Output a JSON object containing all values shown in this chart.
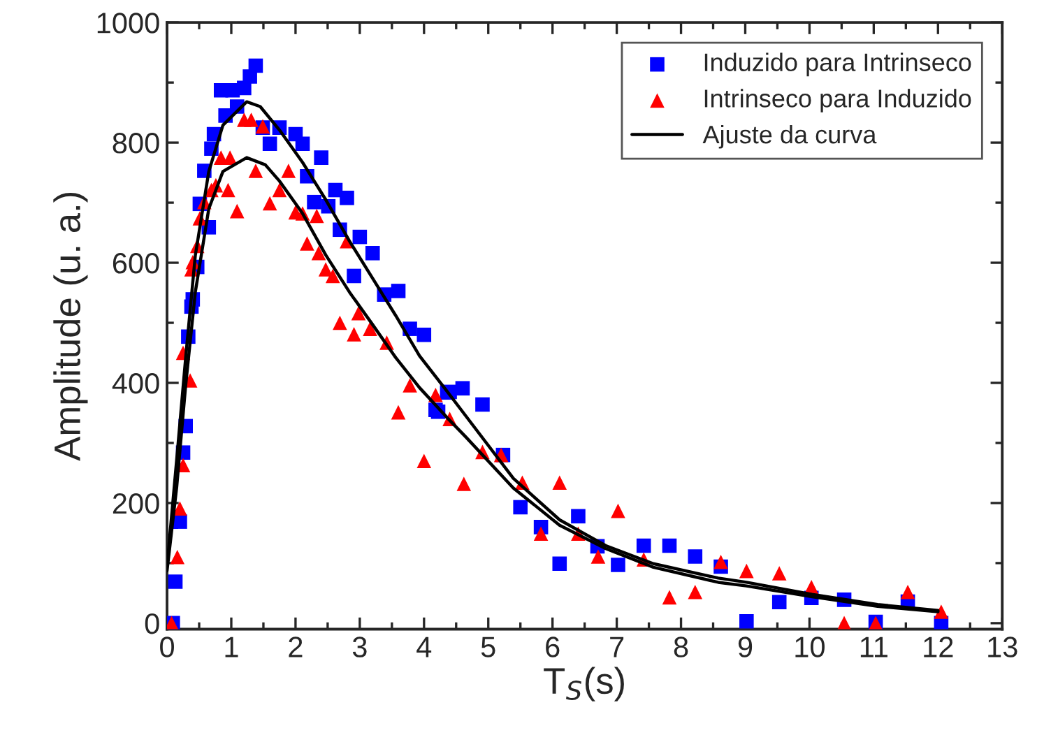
{
  "chart_data": {
    "type": "scatter",
    "xlabel": "T$_{S}$(s)",
    "ylabel": "Amplitude (u. a.)",
    "xlim": [
      0,
      13
    ],
    "ylim": [
      -10,
      1000
    ],
    "xticks": [
      0,
      1,
      2,
      3,
      4,
      5,
      6,
      7,
      8,
      9,
      10,
      11,
      12,
      13
    ],
    "yticks": [
      0,
      200,
      400,
      600,
      800,
      1000
    ],
    "grid": false,
    "legend": "top right",
    "series": [
      {
        "name": "Induzido para Intrinseco",
        "marker": "square",
        "color": "#0000ff",
        "x": [
          0.09,
          0.13,
          0.2,
          0.25,
          0.29,
          0.33,
          0.38,
          0.4,
          0.47,
          0.51,
          0.58,
          0.65,
          0.69,
          0.73,
          0.84,
          0.91,
          1.02,
          1.09,
          1.2,
          1.29,
          1.38,
          1.49,
          1.6,
          1.75,
          2.0,
          2.11,
          2.18,
          2.29,
          2.4,
          2.51,
          2.62,
          2.69,
          2.8,
          2.91,
          3.0,
          3.2,
          3.38,
          3.6,
          3.78,
          4.0,
          4.18,
          4.22,
          4.36,
          4.4,
          4.6,
          4.91,
          5.23,
          5.5,
          5.82,
          6.11,
          6.4,
          6.7,
          7.02,
          7.42,
          7.82,
          8.22,
          8.62,
          9.02,
          9.53,
          10.03,
          10.54,
          11.03,
          11.53,
          12.05
        ],
        "values": [
          0,
          69,
          169,
          284,
          328,
          477,
          527,
          539,
          593,
          698,
          753,
          659,
          790,
          814,
          887,
          845,
          887,
          860,
          891,
          910,
          928,
          825,
          798,
          825,
          814,
          798,
          744,
          701,
          775,
          694,
          721,
          655,
          708,
          578,
          643,
          616,
          547,
          553,
          490,
          480,
          355,
          352,
          384,
          385,
          391,
          364,
          280,
          193,
          160,
          99,
          178,
          128,
          97,
          129,
          129,
          111,
          94,
          3,
          35,
          42,
          39,
          2,
          36,
          0
        ]
      },
      {
        "name": "Intrinseco para Induzido",
        "marker": "triangle",
        "color": "#ff0000",
        "x": [
          0.07,
          0.16,
          0.2,
          0.25,
          0.25,
          0.36,
          0.38,
          0.4,
          0.47,
          0.51,
          0.58,
          0.69,
          0.76,
          0.84,
          0.95,
          0.98,
          1.09,
          1.2,
          1.31,
          1.38,
          1.49,
          1.6,
          1.75,
          1.89,
          2.0,
          2.11,
          2.18,
          2.33,
          2.36,
          2.47,
          2.58,
          2.69,
          2.8,
          2.91,
          2.98,
          3.16,
          3.42,
          3.6,
          3.78,
          4.0,
          4.18,
          4.4,
          4.62,
          4.91,
          5.2,
          5.53,
          5.82,
          6.11,
          6.4,
          6.71,
          7.02,
          7.42,
          7.82,
          8.22,
          8.62,
          9.02,
          9.53,
          10.03,
          10.54,
          11.03,
          11.53,
          12.05
        ],
        "values": [
          0,
          110,
          191,
          263,
          450,
          404,
          589,
          601,
          628,
          674,
          701,
          721,
          729,
          775,
          721,
          775,
          686,
          838,
          838,
          753,
          827,
          699,
          721,
          753,
          684,
          682,
          632,
          678,
          616,
          589,
          578,
          500,
          636,
          481,
          516,
          490,
          467,
          351,
          396,
          270,
          380,
          340,
          232,
          285,
          280,
          234,
          149,
          234,
          149,
          111,
          187,
          106,
          43,
          52,
          102,
          87,
          83,
          60,
          0,
          0,
          52,
          19
        ]
      },
      {
        "name": "Ajuste da curva",
        "type": "line",
        "marker": "none",
        "line_style": "solid",
        "color": "#000000",
        "x": [
          0,
          0.15,
          0.29,
          0.44,
          0.65,
          0.87,
          1.24,
          1.45,
          1.75,
          2.11,
          2.47,
          2.84,
          3.2,
          3.56,
          3.93,
          4.33,
          4.65,
          5.39,
          6.11,
          6.83,
          7.57,
          8.58,
          9.02,
          10.04,
          11.06,
          12.0
        ],
        "values": [
          94,
          272,
          442,
          612,
          752,
          829,
          868,
          860,
          821,
          767,
          705,
          636,
          574,
          512,
          445,
          390,
          345,
          241,
          172,
          129,
          99,
          75,
          68,
          48,
          31,
          21
        ]
      },
      {
        "type": "line",
        "marker": "none",
        "line_style": "solid",
        "color": "#000000",
        "x": [
          0,
          0.15,
          0.29,
          0.44,
          0.65,
          0.87,
          1.24,
          1.53,
          1.75,
          2.11,
          2.47,
          2.84,
          3.2,
          3.56,
          3.93,
          4.36,
          4.65,
          5.39,
          6.11,
          6.83,
          7.57,
          8.58,
          9.02,
          10.04,
          11.06,
          12.0
        ],
        "values": [
          87,
          226,
          396,
          551,
          690,
          752,
          775,
          763,
          736,
          682,
          613,
          551,
          497,
          442,
          392,
          342,
          310,
          225,
          163,
          124,
          93,
          68,
          62,
          44,
          28,
          19
        ]
      }
    ]
  }
}
